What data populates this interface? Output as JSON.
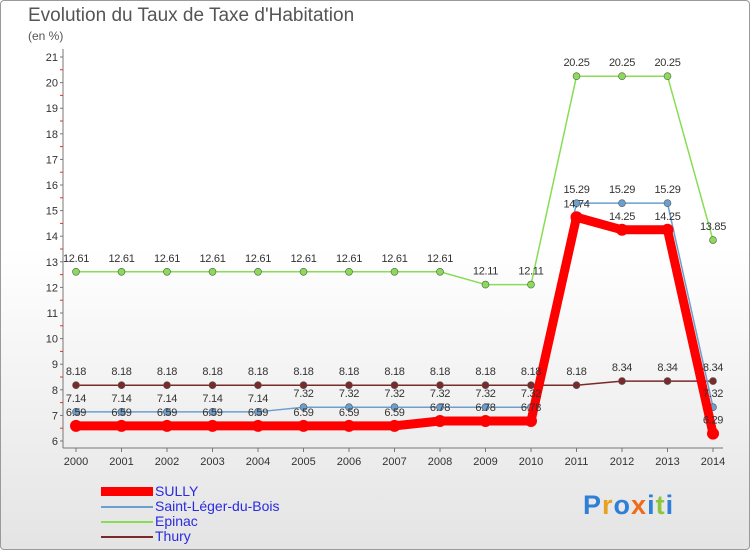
{
  "title": "Evolution du Taux de Taxe d'Habitation",
  "unit": "(en %)",
  "logo_text": "Proxiti",
  "chart_data": {
    "type": "line",
    "title": "Evolution du Taux de Taxe d'Habitation",
    "ylabel": "(en %)",
    "x": [
      "2000",
      "2001",
      "2002",
      "2003",
      "2004",
      "2005",
      "2006",
      "2007",
      "2008",
      "2009",
      "2010",
      "2011",
      "2012",
      "2013",
      "2014"
    ],
    "y_ticks": [
      "6",
      "7",
      "8",
      "9",
      "10",
      "11",
      "12",
      "13",
      "14",
      "15",
      "16",
      "17",
      "18",
      "19",
      "20",
      "21"
    ],
    "ylim": [
      6,
      21
    ],
    "grid": false,
    "legend_position": "bottom-left",
    "series": [
      {
        "name": "SULLY",
        "color": "#ff0000",
        "values": [
          6.59,
          6.59,
          6.59,
          6.59,
          6.59,
          6.59,
          6.59,
          6.59,
          6.78,
          6.78,
          6.78,
          14.74,
          14.25,
          14.25,
          6.29
        ],
        "labels": [
          "6.59",
          "6.59",
          "6.59",
          "6.59",
          "6.59",
          "6.59",
          "6.59",
          "6.59",
          "6.78",
          "6.78",
          "6.78",
          "14.74",
          "14.25",
          "14.25",
          "6.29"
        ]
      },
      {
        "name": "Saint-Léger-du-Bois",
        "color": "#6b9fcf",
        "values": [
          7.14,
          7.14,
          7.14,
          7.14,
          7.14,
          7.32,
          7.32,
          7.32,
          7.32,
          7.32,
          7.32,
          15.29,
          15.29,
          15.29,
          7.32
        ],
        "labels": [
          "7.14",
          "7.14",
          "7.14",
          "7.14",
          "7.14",
          "7.32",
          "7.32",
          "7.32",
          "7.32",
          "7.32",
          "7.32",
          "15.29",
          "15.29",
          "15.29",
          "7.32"
        ]
      },
      {
        "name": "Epinac",
        "color": "#88dd55",
        "values": [
          12.61,
          12.61,
          12.61,
          12.61,
          12.61,
          12.61,
          12.61,
          12.61,
          12.61,
          12.11,
          12.11,
          20.25,
          20.25,
          20.25,
          13.85
        ],
        "labels": [
          "12.61",
          "12.61",
          "12.61",
          "12.61",
          "12.61",
          "12.61",
          "12.61",
          "12.61",
          "12.61",
          "12.11",
          "12.11",
          "20.25",
          "20.25",
          "20.25",
          "13.85"
        ]
      },
      {
        "name": "Thury",
        "color": "#7a2a2a",
        "values": [
          8.18,
          8.18,
          8.18,
          8.18,
          8.18,
          8.18,
          8.18,
          8.18,
          8.18,
          8.18,
          8.18,
          8.18,
          8.34,
          8.34,
          8.34
        ],
        "labels": [
          "8.18",
          "8.18",
          "8.18",
          "8.18",
          "8.18",
          "8.18",
          "8.18",
          "8.18",
          "8.18",
          "8.18",
          "8.18",
          "8.18",
          "8.34",
          "8.34",
          "8.34"
        ]
      }
    ]
  }
}
